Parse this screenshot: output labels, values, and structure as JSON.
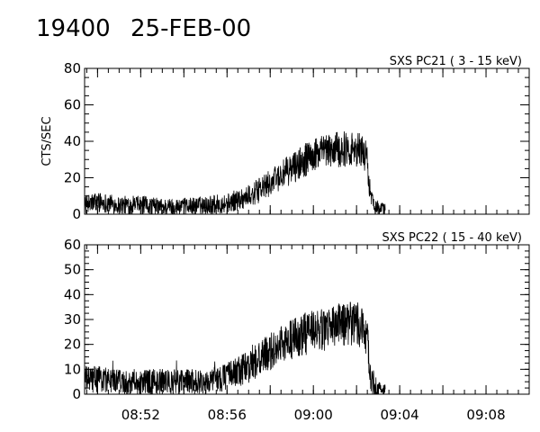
{
  "header": {
    "id": "19400",
    "date": "25-FEB-00"
  },
  "chart_data": [
    {
      "type": "line",
      "title": "SXS PC21  (  3 - 15 keV)",
      "xlabel": "",
      "ylabel": "CTS/SEC",
      "x_unit": "time (HH:MM)",
      "xlim": [
        "08:49:24",
        "09:10:00"
      ],
      "ylim": [
        0,
        80
      ],
      "yticks": [
        0,
        20,
        40,
        60,
        80
      ],
      "xtick_labels": [],
      "grid": false,
      "series": [
        {
          "x": [
            "08:49:24",
            "08:50:00",
            "08:51:00",
            "08:52:00",
            "08:53:00",
            "08:54:00",
            "08:55:00",
            "08:56:00",
            "08:56:30",
            "08:57:00",
            "08:57:30",
            "08:58:00",
            "08:58:30",
            "08:59:00",
            "08:59:30",
            "09:00:00",
            "09:00:30",
            "09:01:00",
            "09:01:30",
            "09:02:00",
            "09:02:20",
            "09:02:30",
            "09:02:40",
            "09:03:00",
            "09:03:20"
          ],
          "values": [
            5,
            7,
            5,
            5,
            4,
            4,
            5,
            6,
            8,
            10,
            13,
            17,
            21,
            25,
            29,
            32,
            34,
            35,
            36,
            36,
            35,
            28,
            8,
            3,
            2
          ]
        }
      ]
    },
    {
      "type": "line",
      "title": "SXS PC22  ( 15 - 40 keV)",
      "xlabel": "",
      "ylabel": "",
      "x_unit": "time (HH:MM)",
      "xlim": [
        "08:49:24",
        "09:10:00"
      ],
      "ylim": [
        0,
        60
      ],
      "yticks": [
        0,
        10,
        20,
        30,
        40,
        50,
        60
      ],
      "xtick_labels": [
        "08:52",
        "08:56",
        "09:00",
        "09:04",
        "09:08"
      ],
      "grid": false,
      "series": [
        {
          "x": [
            "08:49:24",
            "08:50:00",
            "08:51:00",
            "08:52:00",
            "08:53:00",
            "08:54:00",
            "08:55:00",
            "08:56:00",
            "08:56:30",
            "08:57:00",
            "08:57:30",
            "08:58:00",
            "08:58:30",
            "08:59:00",
            "08:59:30",
            "09:00:00",
            "09:00:30",
            "09:01:00",
            "09:01:30",
            "09:02:00",
            "09:02:20",
            "09:02:30",
            "09:02:40",
            "09:03:00",
            "09:03:20"
          ],
          "values": [
            6,
            6,
            5,
            5,
            5,
            5,
            5,
            7,
            9,
            11,
            14,
            17,
            20,
            22,
            24,
            25,
            26,
            27,
            28,
            28,
            27,
            22,
            6,
            2,
            1
          ]
        }
      ]
    }
  ]
}
